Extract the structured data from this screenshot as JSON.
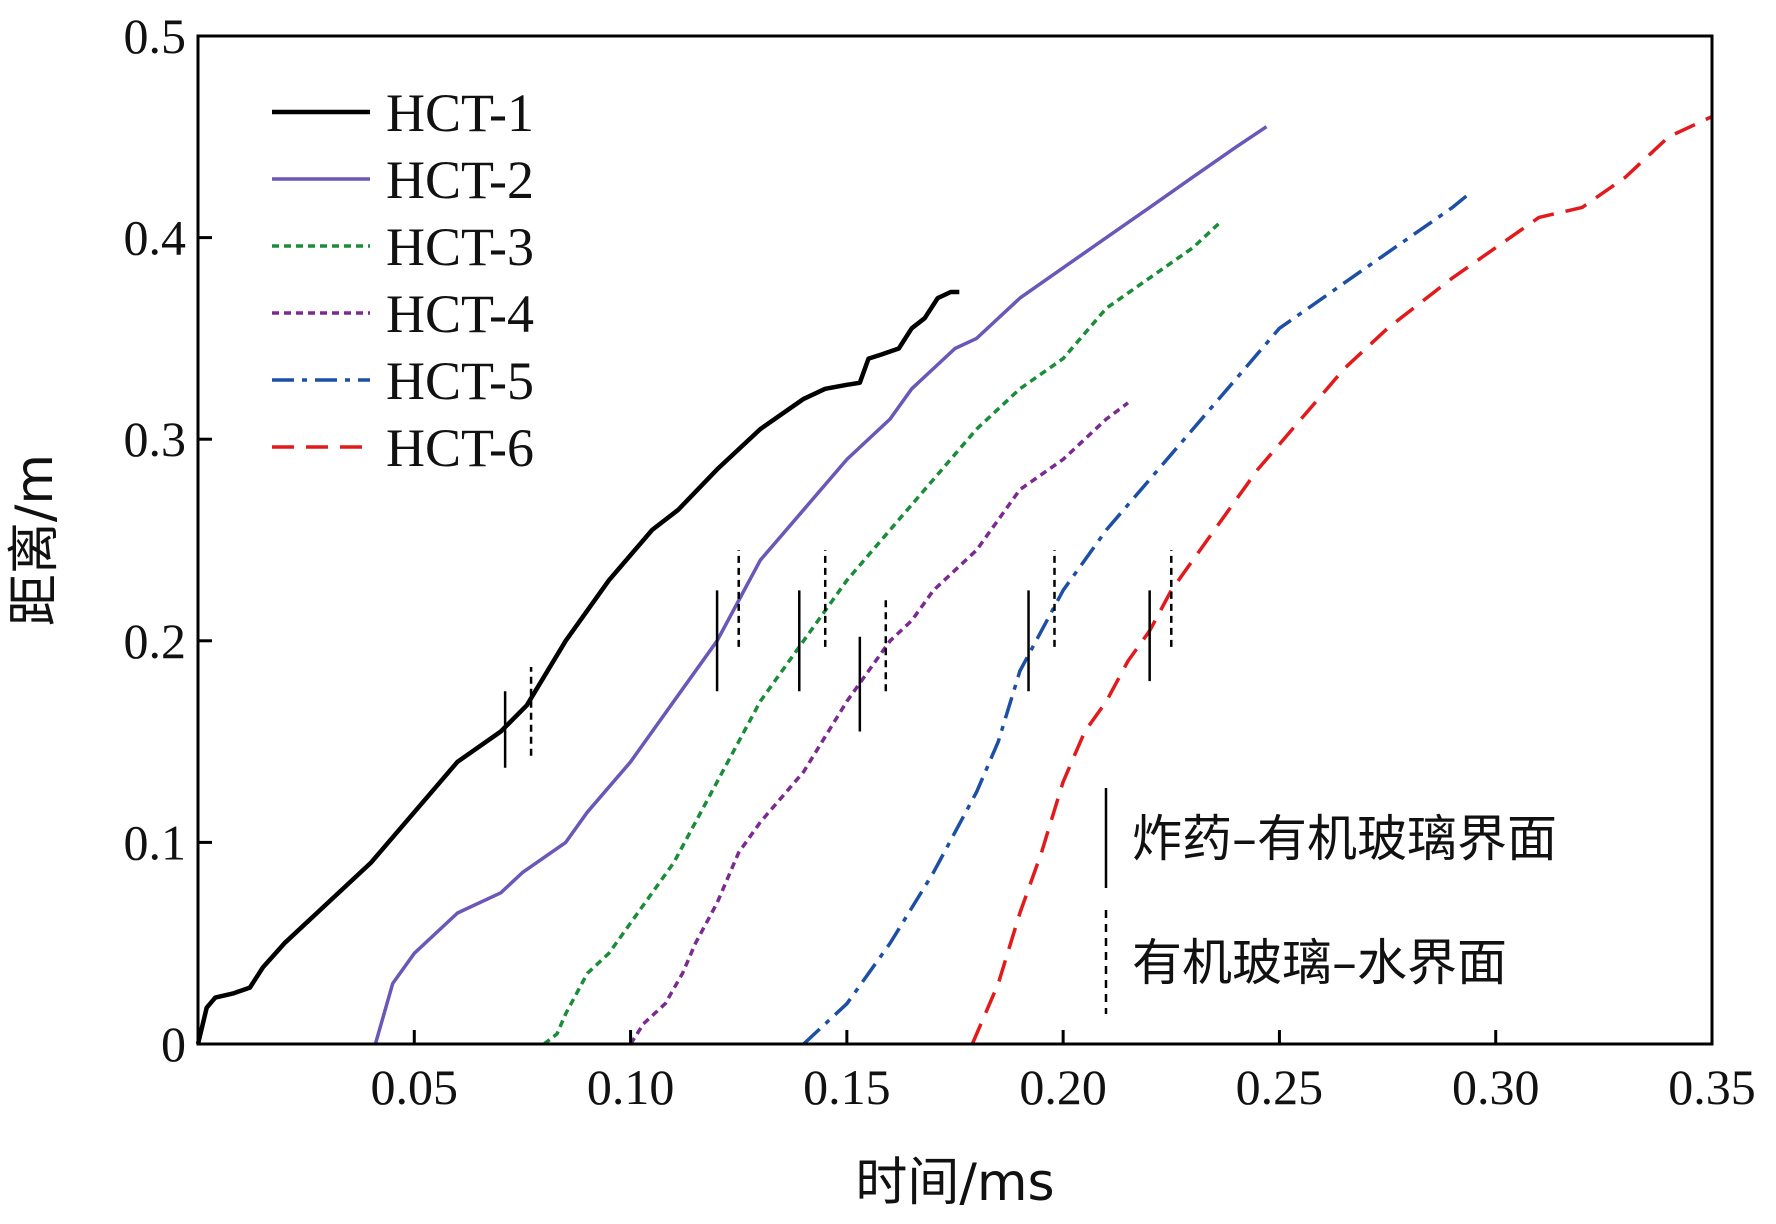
{
  "chart_data": {
    "type": "line",
    "xlabel": "时间/ms",
    "ylabel": "距离/m",
    "xlim": [
      0,
      0.35
    ],
    "ylim": [
      0,
      0.5
    ],
    "xticks": [
      "0.05",
      "0.10",
      "0.15",
      "0.20",
      "0.25",
      "0.30",
      "0.35"
    ],
    "xtick_values": [
      0.05,
      0.1,
      0.15,
      0.2,
      0.25,
      0.3,
      0.35
    ],
    "yticks": [
      "0",
      "0.1",
      "0.2",
      "0.3",
      "0.4",
      "0.5"
    ],
    "ytick_values": [
      0,
      0.1,
      0.2,
      0.3,
      0.4,
      0.5
    ],
    "legend_position": "top-left",
    "series": [
      {
        "name": "HCT-1",
        "color": "#000000",
        "dash": "solid",
        "x": [
          0,
          0.002,
          0.004,
          0.008,
          0.012,
          0.015,
          0.02,
          0.03,
          0.04,
          0.05,
          0.06,
          0.07,
          0.076,
          0.085,
          0.095,
          0.105,
          0.111,
          0.12,
          0.13,
          0.14,
          0.145,
          0.15,
          0.153,
          0.155,
          0.158,
          0.162,
          0.165,
          0.168,
          0.171,
          0.174,
          0.176
        ],
        "y": [
          0,
          0.018,
          0.023,
          0.025,
          0.028,
          0.038,
          0.05,
          0.07,
          0.09,
          0.115,
          0.14,
          0.155,
          0.168,
          0.2,
          0.23,
          0.255,
          0.265,
          0.285,
          0.305,
          0.32,
          0.325,
          0.327,
          0.328,
          0.34,
          0.342,
          0.345,
          0.355,
          0.36,
          0.37,
          0.373,
          0.373
        ]
      },
      {
        "name": "HCT-2",
        "color": "#6b57b8",
        "dash": "solid",
        "x": [
          0.041,
          0.045,
          0.05,
          0.055,
          0.06,
          0.07,
          0.075,
          0.085,
          0.09,
          0.1,
          0.11,
          0.12,
          0.125,
          0.13,
          0.14,
          0.15,
          0.16,
          0.165,
          0.175,
          0.18,
          0.19,
          0.2,
          0.21,
          0.22,
          0.23,
          0.24,
          0.247
        ],
        "y": [
          0,
          0.03,
          0.045,
          0.055,
          0.065,
          0.075,
          0.085,
          0.1,
          0.115,
          0.14,
          0.17,
          0.2,
          0.22,
          0.24,
          0.265,
          0.29,
          0.31,
          0.325,
          0.345,
          0.35,
          0.37,
          0.385,
          0.4,
          0.415,
          0.43,
          0.445,
          0.455
        ]
      },
      {
        "name": "HCT-3",
        "color": "#1a8c3a",
        "dash": "dotted",
        "x": [
          0.08,
          0.083,
          0.085,
          0.09,
          0.095,
          0.1,
          0.105,
          0.11,
          0.115,
          0.12,
          0.125,
          0.13,
          0.135,
          0.14,
          0.145,
          0.15,
          0.16,
          0.17,
          0.18,
          0.19,
          0.2,
          0.21,
          0.22,
          0.23,
          0.236
        ],
        "y": [
          0,
          0.005,
          0.015,
          0.035,
          0.045,
          0.06,
          0.075,
          0.09,
          0.11,
          0.13,
          0.15,
          0.17,
          0.185,
          0.2,
          0.215,
          0.23,
          0.255,
          0.28,
          0.305,
          0.325,
          0.34,
          0.365,
          0.38,
          0.395,
          0.407
        ]
      },
      {
        "name": "HCT-4",
        "color": "#7a2a90",
        "dash": "dotted",
        "x": [
          0.1,
          0.103,
          0.108,
          0.112,
          0.115,
          0.12,
          0.125,
          0.13,
          0.14,
          0.15,
          0.155,
          0.16,
          0.165,
          0.17,
          0.18,
          0.19,
          0.2,
          0.21,
          0.215
        ],
        "y": [
          0,
          0.01,
          0.02,
          0.035,
          0.05,
          0.07,
          0.095,
          0.11,
          0.135,
          0.17,
          0.185,
          0.2,
          0.21,
          0.225,
          0.245,
          0.275,
          0.29,
          0.31,
          0.318
        ]
      },
      {
        "name": "HCT-5",
        "color": "#1d4fa5",
        "dash": "dashdot",
        "x": [
          0.14,
          0.15,
          0.16,
          0.17,
          0.18,
          0.185,
          0.19,
          0.2,
          0.21,
          0.22,
          0.23,
          0.24,
          0.25,
          0.26,
          0.27,
          0.28,
          0.29,
          0.294
        ],
        "y": [
          0,
          0.02,
          0.05,
          0.085,
          0.125,
          0.15,
          0.185,
          0.225,
          0.255,
          0.28,
          0.305,
          0.33,
          0.355,
          0.37,
          0.385,
          0.4,
          0.415,
          0.422
        ]
      },
      {
        "name": "HCT-6",
        "color": "#e31a1c",
        "dash": "dashed",
        "x": [
          0.179,
          0.185,
          0.19,
          0.195,
          0.2,
          0.205,
          0.21,
          0.215,
          0.22,
          0.225,
          0.235,
          0.245,
          0.255,
          0.265,
          0.275,
          0.29,
          0.3,
          0.31,
          0.32,
          0.33,
          0.34,
          0.35
        ],
        "y": [
          0,
          0.03,
          0.065,
          0.095,
          0.13,
          0.155,
          0.17,
          0.19,
          0.205,
          0.225,
          0.255,
          0.285,
          0.31,
          0.335,
          0.355,
          0.38,
          0.395,
          0.41,
          0.415,
          0.43,
          0.45,
          0.46
        ]
      }
    ],
    "markers": {
      "interface1": [
        {
          "x": 0.071,
          "y0": 0.137,
          "y1": 0.175
        },
        {
          "x": 0.12,
          "y0": 0.175,
          "y1": 0.225
        },
        {
          "x": 0.139,
          "y0": 0.175,
          "y1": 0.225
        },
        {
          "x": 0.153,
          "y0": 0.155,
          "y1": 0.202
        },
        {
          "x": 0.192,
          "y0": 0.175,
          "y1": 0.225
        },
        {
          "x": 0.22,
          "y0": 0.18,
          "y1": 0.225
        }
      ],
      "interface2": [
        {
          "x": 0.077,
          "y0": 0.143,
          "y1": 0.187
        },
        {
          "x": 0.125,
          "y0": 0.197,
          "y1": 0.245
        },
        {
          "x": 0.145,
          "y0": 0.197,
          "y1": 0.245
        },
        {
          "x": 0.159,
          "y0": 0.175,
          "y1": 0.222
        },
        {
          "x": 0.198,
          "y0": 0.197,
          "y1": 0.245
        },
        {
          "x": 0.225,
          "y0": 0.197,
          "y1": 0.245
        }
      ]
    },
    "annotations": {
      "solid_label": "炸药–有机玻璃界面",
      "dashed_label": "有机玻璃–水界面"
    }
  }
}
